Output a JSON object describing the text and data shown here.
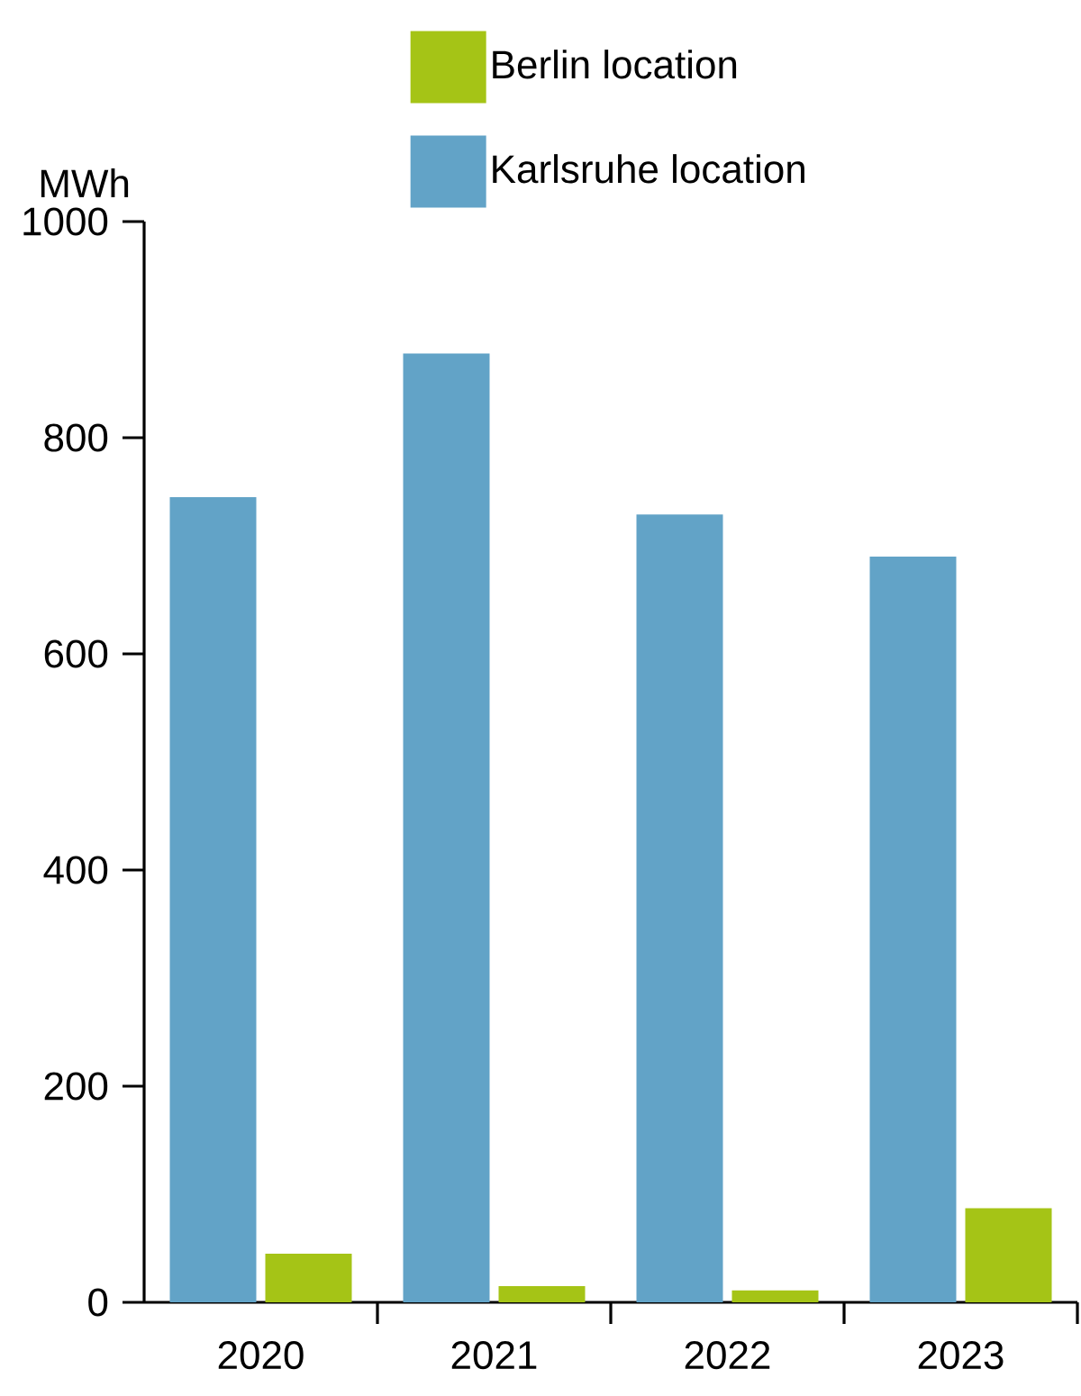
{
  "chart_data": {
    "type": "bar",
    "ylabel": "MWh",
    "categories": [
      "2020",
      "2021",
      "2022",
      "2023"
    ],
    "series": [
      {
        "name": "Karlsruhe location",
        "color": "#62a3c7",
        "values": [
          745,
          878,
          729,
          690
        ]
      },
      {
        "name": "Berlin location",
        "color": "#a5c416",
        "values": [
          45,
          15,
          11,
          87
        ]
      }
    ],
    "ylim": [
      0,
      1000
    ],
    "yticks": [
      0,
      200,
      400,
      600,
      800,
      1000
    ],
    "legend": "top"
  }
}
